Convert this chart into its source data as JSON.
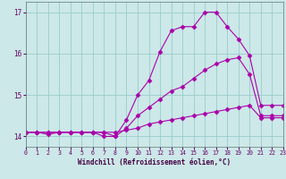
{
  "background_color": "#cce8e8",
  "line_color": "#aa00aa",
  "grid_color": "#99cccc",
  "xlabel": "Windchill (Refroidissement éolien,°C)",
  "xlim": [
    0,
    23
  ],
  "ylim": [
    13.75,
    17.25
  ],
  "yticks": [
    14,
    15,
    16,
    17
  ],
  "xticks": [
    0,
    1,
    2,
    3,
    4,
    5,
    6,
    7,
    8,
    9,
    10,
    11,
    12,
    13,
    14,
    15,
    16,
    17,
    18,
    19,
    20,
    21,
    22,
    23
  ],
  "series1_x": [
    0,
    1,
    2,
    3,
    4,
    5,
    6,
    7,
    8,
    9,
    10,
    11,
    12,
    13,
    14,
    15,
    16,
    17,
    18,
    19,
    20,
    21,
    22,
    23
  ],
  "series1_y": [
    14.1,
    14.1,
    14.05,
    14.1,
    14.1,
    14.1,
    14.1,
    14.0,
    14.0,
    14.4,
    15.0,
    15.35,
    16.05,
    16.55,
    16.65,
    16.65,
    17.0,
    17.0,
    16.65,
    16.35,
    15.95,
    14.75,
    14.75,
    14.75
  ],
  "series2_x": [
    0,
    1,
    2,
    3,
    4,
    5,
    6,
    7,
    8,
    9,
    10,
    11,
    12,
    13,
    14,
    15,
    16,
    17,
    18,
    19,
    20,
    21,
    22,
    23
  ],
  "series2_y": [
    14.1,
    14.1,
    14.1,
    14.1,
    14.1,
    14.1,
    14.1,
    14.1,
    14.0,
    14.2,
    14.5,
    14.7,
    14.9,
    15.1,
    15.2,
    15.4,
    15.6,
    15.75,
    15.85,
    15.9,
    15.5,
    14.5,
    14.5,
    14.5
  ],
  "series3_x": [
    0,
    1,
    2,
    3,
    4,
    5,
    6,
    7,
    8,
    9,
    10,
    11,
    12,
    13,
    14,
    15,
    16,
    17,
    18,
    19,
    20,
    21,
    22,
    23
  ],
  "series3_y": [
    14.1,
    14.1,
    14.1,
    14.1,
    14.1,
    14.1,
    14.1,
    14.1,
    14.1,
    14.15,
    14.2,
    14.3,
    14.35,
    14.4,
    14.45,
    14.5,
    14.55,
    14.6,
    14.65,
    14.7,
    14.75,
    14.45,
    14.45,
    14.45
  ],
  "markersize": 2.5,
  "linewidth": 0.8
}
